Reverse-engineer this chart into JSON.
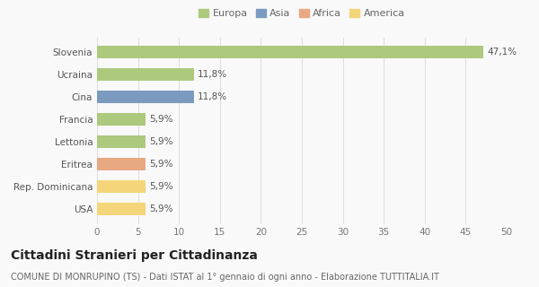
{
  "categories": [
    "Slovenia",
    "Ucraina",
    "Cina",
    "Francia",
    "Lettonia",
    "Eritrea",
    "Rep. Dominicana",
    "USA"
  ],
  "values": [
    47.1,
    11.8,
    11.8,
    5.9,
    5.9,
    5.9,
    5.9,
    5.9
  ],
  "labels": [
    "47,1%",
    "11,8%",
    "11,8%",
    "5,9%",
    "5,9%",
    "5,9%",
    "5,9%",
    "5,9%"
  ],
  "colors": [
    "#adc97e",
    "#adc97e",
    "#7a9bbf",
    "#adc97e",
    "#adc97e",
    "#e8a882",
    "#f5d57a",
    "#f5d57a"
  ],
  "legend_labels": [
    "Europa",
    "Asia",
    "Africa",
    "America"
  ],
  "legend_colors": [
    "#adc97e",
    "#7a9bbf",
    "#e8a882",
    "#f5d57a"
  ],
  "title": "Cittadini Stranieri per Cittadinanza",
  "subtitle": "COMUNE DI MONRUPINO (TS) - Dati ISTAT al 1° gennaio di ogni anno - Elaborazione TUTTITALIA.IT",
  "xlim": [
    0,
    50
  ],
  "xticks": [
    0,
    5,
    10,
    15,
    20,
    25,
    30,
    35,
    40,
    45,
    50
  ],
  "bg_color": "#f9f9f9",
  "bar_height": 0.55,
  "label_fontsize": 7.5,
  "title_fontsize": 10,
  "subtitle_fontsize": 7,
  "tick_fontsize": 7.5,
  "legend_fontsize": 8
}
